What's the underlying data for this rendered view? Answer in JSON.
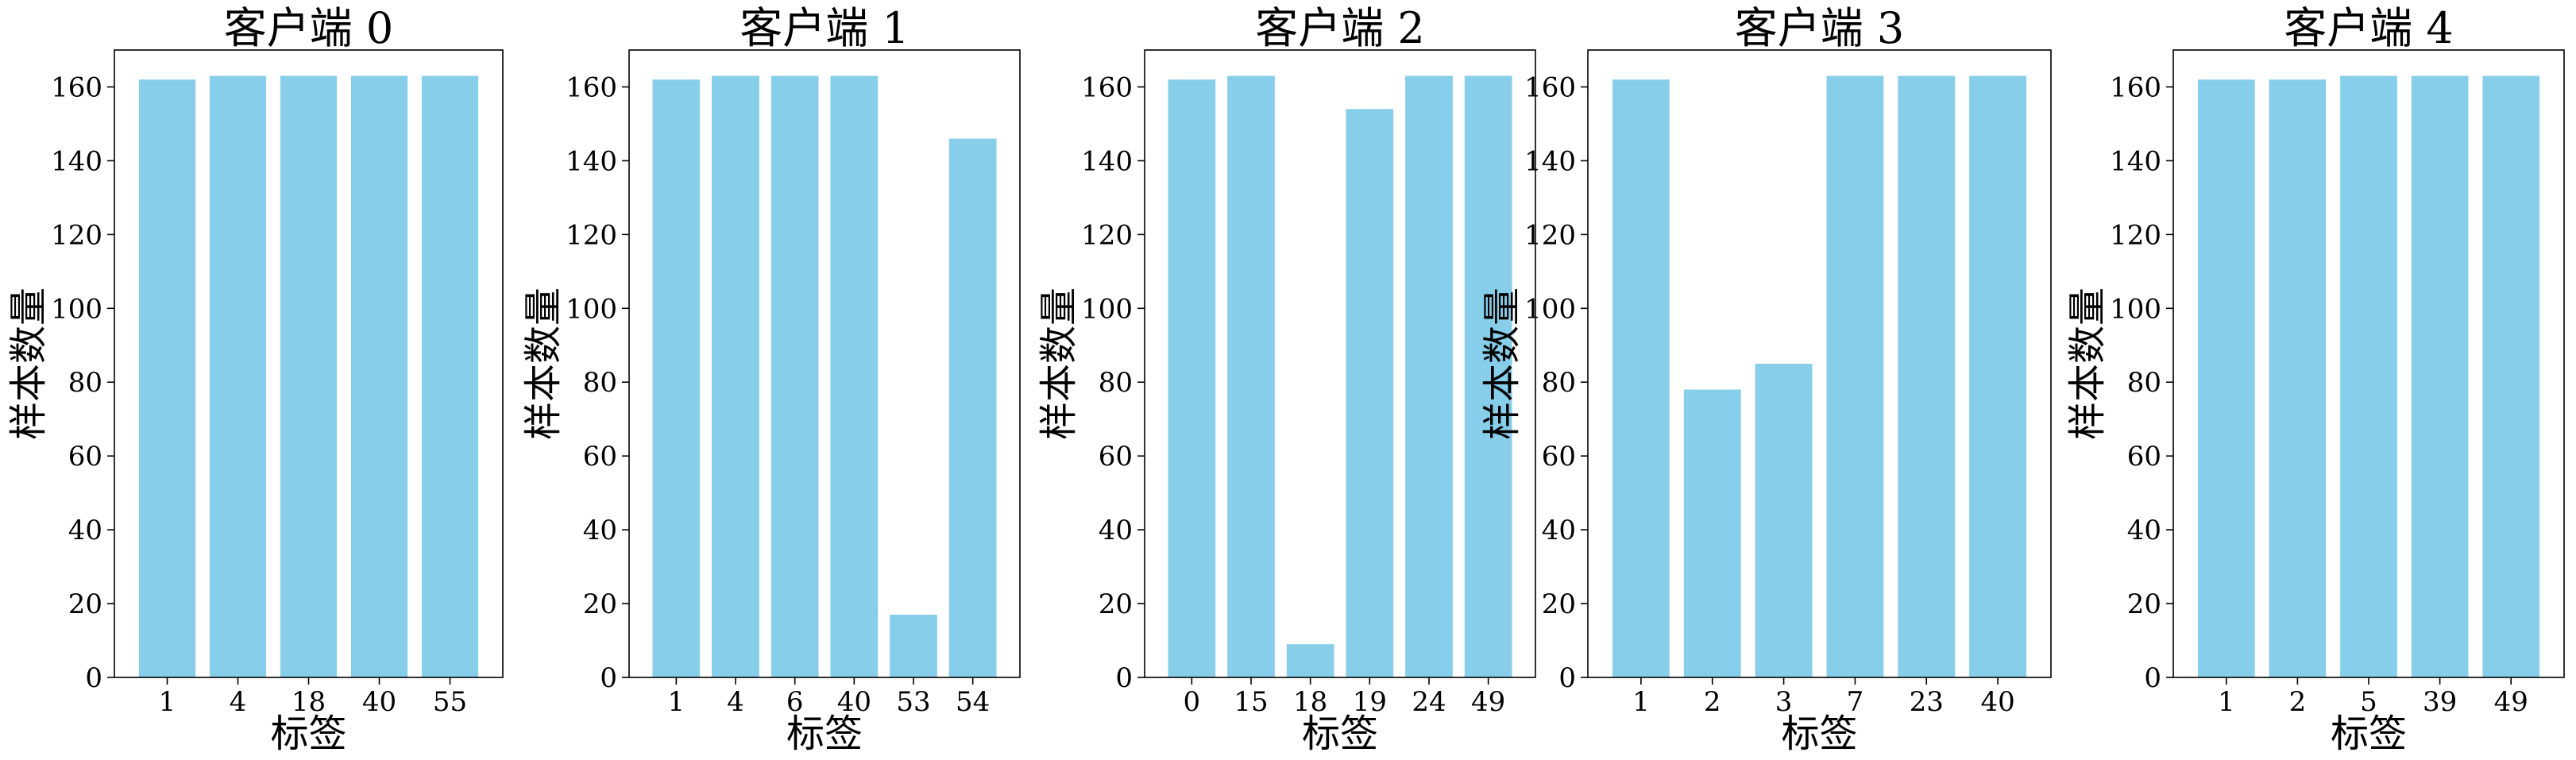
{
  "figure": {
    "bar_color": "#87CEEB",
    "axis_color": "#000000",
    "background": "#ffffff"
  },
  "chart_data": [
    {
      "type": "bar",
      "title": "客户端 0",
      "xlabel": "标签",
      "ylabel": "样本数量",
      "categories": [
        "1",
        "4",
        "18",
        "40",
        "55"
      ],
      "values": [
        162,
        163,
        163,
        163,
        163
      ],
      "ylim": [
        0,
        170
      ],
      "yticks": [
        0,
        20,
        40,
        60,
        80,
        100,
        120,
        140,
        160
      ],
      "grid": false
    },
    {
      "type": "bar",
      "title": "客户端 1",
      "xlabel": "标签",
      "ylabel": "样本数量",
      "categories": [
        "1",
        "4",
        "6",
        "40",
        "53",
        "54"
      ],
      "values": [
        162,
        163,
        163,
        163,
        17,
        146
      ],
      "ylim": [
        0,
        170
      ],
      "yticks": [
        0,
        20,
        40,
        60,
        80,
        100,
        120,
        140,
        160
      ],
      "grid": false
    },
    {
      "type": "bar",
      "title": "客户端 2",
      "xlabel": "标签",
      "ylabel": "样本数量",
      "categories": [
        "0",
        "15",
        "18",
        "19",
        "24",
        "49"
      ],
      "values": [
        162,
        163,
        9,
        154,
        163,
        163
      ],
      "ylim": [
        0,
        170
      ],
      "yticks": [
        0,
        20,
        40,
        60,
        80,
        100,
        120,
        140,
        160
      ],
      "grid": false
    },
    {
      "type": "bar",
      "title": "客户端 3",
      "xlabel": "标签",
      "ylabel": "样本数量",
      "categories": [
        "1",
        "2",
        "3",
        "7",
        "23",
        "40"
      ],
      "values": [
        162,
        78,
        85,
        163,
        163,
        163
      ],
      "ylim": [
        0,
        170
      ],
      "yticks": [
        0,
        20,
        40,
        60,
        80,
        100,
        120,
        140,
        160
      ],
      "grid": false
    },
    {
      "type": "bar",
      "title": "客户端 4",
      "xlabel": "标签",
      "ylabel": "样本数量",
      "categories": [
        "1",
        "2",
        "5",
        "39",
        "49"
      ],
      "values": [
        162,
        162,
        163,
        163,
        163
      ],
      "ylim": [
        0,
        170
      ],
      "yticks": [
        0,
        20,
        40,
        60,
        80,
        100,
        120,
        140,
        160
      ],
      "grid": false
    }
  ]
}
